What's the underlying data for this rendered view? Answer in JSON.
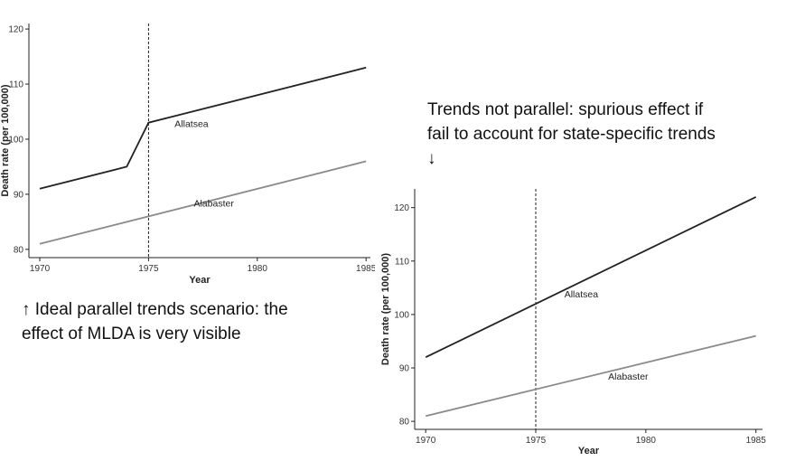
{
  "captions": {
    "top_right": "Trends not parallel: spurious effect if\nfail to account for state-specific trends\n↓",
    "bottom_left": "↑ Ideal parallel trends scenario: the\neffect of MLDA is very visible"
  },
  "colors": {
    "allatsea": "#222222",
    "alabaster": "#8a8a8a",
    "axis": "#222222",
    "marker_line": "#222222"
  },
  "chart_data": [
    {
      "type": "line",
      "xlabel": "Year",
      "ylabel": "Death rate (per 100,000)",
      "xlim": [
        1969.5,
        1985.2
      ],
      "ylim": [
        78.5,
        121
      ],
      "xticks": [
        1970,
        1975,
        1980,
        1985
      ],
      "yticks": [
        80,
        90,
        100,
        110,
        120
      ],
      "vline_x": 1975,
      "grid": false,
      "series": [
        {
          "name": "Allatsea",
          "x": [
            1970,
            1974,
            1975,
            1985
          ],
          "y": [
            91,
            95,
            103,
            113
          ]
        },
        {
          "name": "Alabaster",
          "x": [
            1970,
            1985
          ],
          "y": [
            81,
            96
          ]
        }
      ]
    },
    {
      "type": "line",
      "xlabel": "Year",
      "ylabel": "Death rate (per 100,000)",
      "xlim": [
        1969.5,
        1985.3
      ],
      "ylim": [
        78.5,
        123.5
      ],
      "xticks": [
        1970,
        1975,
        1980,
        1985
      ],
      "yticks": [
        80,
        90,
        100,
        110,
        120
      ],
      "vline_x": 1975,
      "grid": false,
      "series": [
        {
          "name": "Allatsea",
          "x": [
            1970,
            1985
          ],
          "y": [
            92,
            122
          ]
        },
        {
          "name": "Alabaster",
          "x": [
            1970,
            1985
          ],
          "y": [
            81,
            96
          ]
        }
      ]
    }
  ]
}
